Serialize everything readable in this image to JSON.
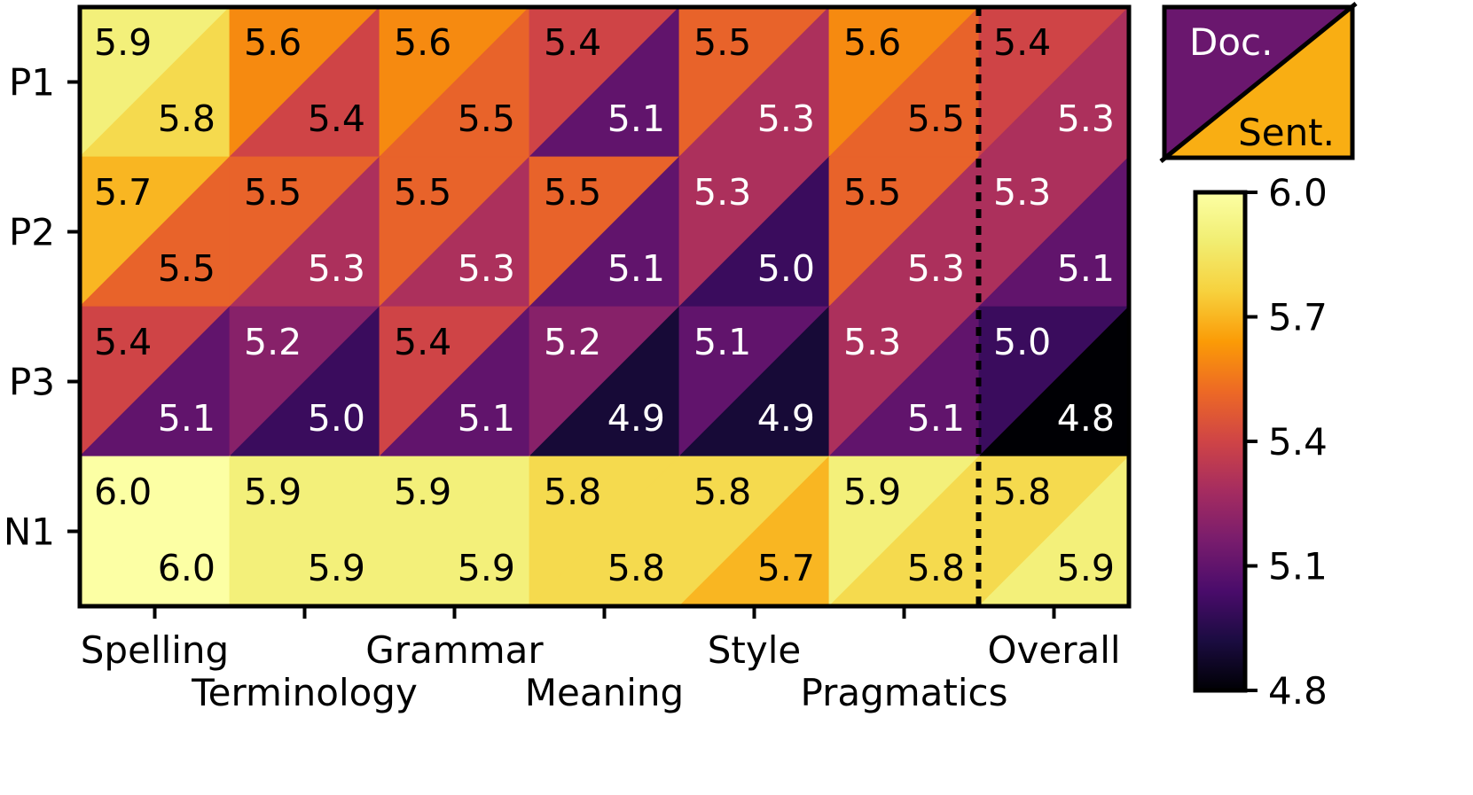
{
  "chart_data": {
    "type": "heatmap",
    "title": "",
    "rows": [
      "P1",
      "P2",
      "P3",
      "N1"
    ],
    "columns": [
      "Spelling",
      "Terminology",
      "Grammar",
      "Meaning",
      "Style",
      "Pragmatics",
      "Overall"
    ],
    "cell_split": "diagonal",
    "doc_values": [
      [
        5.9,
        5.6,
        5.6,
        5.4,
        5.5,
        5.6,
        5.4
      ],
      [
        5.7,
        5.5,
        5.5,
        5.5,
        5.3,
        5.5,
        5.3
      ],
      [
        5.4,
        5.2,
        5.4,
        5.2,
        5.1,
        5.3,
        5.0
      ],
      [
        6.0,
        5.9,
        5.9,
        5.8,
        5.8,
        5.9,
        5.8
      ]
    ],
    "sent_values": [
      [
        5.8,
        5.4,
        5.5,
        5.1,
        5.3,
        5.5,
        5.3
      ],
      [
        5.5,
        5.3,
        5.3,
        5.1,
        5.0,
        5.3,
        5.1
      ],
      [
        5.1,
        5.0,
        5.1,
        4.9,
        4.9,
        5.1,
        4.8
      ],
      [
        6.0,
        5.9,
        5.9,
        5.8,
        5.7,
        5.8,
        5.9
      ]
    ],
    "separator_before_column": "Overall",
    "legend": {
      "upper_triangle": "Doc.",
      "lower_triangle": "Sent.",
      "placement": "top-right"
    },
    "colorbar": {
      "colormap": "inferno",
      "min": 4.8,
      "max": 6.0,
      "ticks": [
        6.0,
        5.7,
        5.4,
        5.1,
        4.8
      ]
    }
  }
}
